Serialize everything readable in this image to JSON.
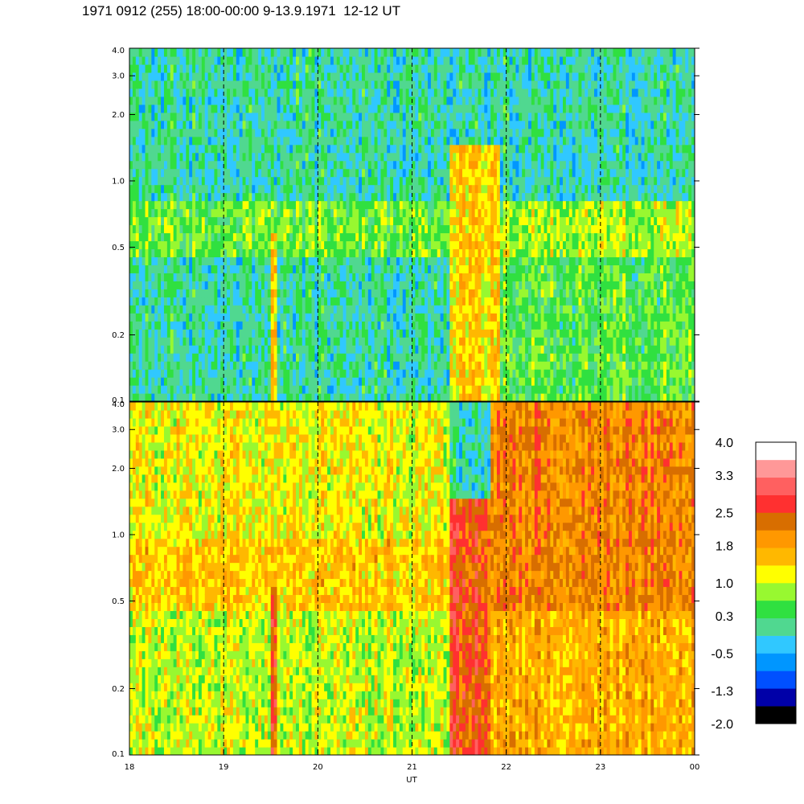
{
  "title": "1971 0912 (255) 18:00-00:00 9-13.9.1971  12-12 UT",
  "colors": {
    "scale": [
      "#000000",
      "#0000a8",
      "#0050ff",
      "#0096ff",
      "#30c8ff",
      "#50d890",
      "#30e040",
      "#98f830",
      "#ffff00",
      "#ffb800",
      "#ff9800",
      "#d86e00",
      "#ff3030",
      "#ff6060",
      "#ff9898",
      "#ffffff"
    ]
  },
  "chart_data": [
    {
      "type": "heatmap",
      "panel": "top",
      "xlabel": "",
      "ylabel": "",
      "x_range_hours": [
        18,
        24
      ],
      "y_range": [
        0.1,
        4.0
      ],
      "y_scale": "log",
      "y_ticks": [
        "0.1",
        "0.2",
        "0.5",
        "1.0",
        "2.0",
        "3.0",
        "4.0"
      ],
      "y_tick_values": [
        0.1,
        0.2,
        0.5,
        1.0,
        2.0,
        3.0,
        4.0
      ],
      "grid": "vertical dashed lines at each hour",
      "segments": [
        {
          "x": [
            18.0,
            21.4
          ],
          "y": [
            0.1,
            0.45
          ],
          "level": 0.0
        },
        {
          "x": [
            18.0,
            21.4
          ],
          "y": [
            0.45,
            0.8
          ],
          "level": 0.6
        },
        {
          "x": [
            18.0,
            24.0
          ],
          "y": [
            0.8,
            4.0
          ],
          "level": 0.0
        },
        {
          "x": [
            19.5,
            19.57
          ],
          "y": [
            0.1,
            0.6
          ],
          "level": 1.6
        },
        {
          "x": [
            21.4,
            21.95
          ],
          "y": [
            0.1,
            1.5
          ],
          "level": 1.4
        },
        {
          "x": [
            21.95,
            24.0
          ],
          "y": [
            0.1,
            0.45
          ],
          "level": 0.5
        },
        {
          "x": [
            21.95,
            24.0
          ],
          "y": [
            0.45,
            0.8
          ],
          "level": 0.9
        }
      ]
    },
    {
      "type": "heatmap",
      "panel": "bottom",
      "xlabel": "UT",
      "ylabel": "",
      "x_range_hours": [
        18,
        24
      ],
      "x_ticks": [
        "18",
        "19",
        "20",
        "21",
        "22",
        "23",
        "00"
      ],
      "x_tick_values": [
        18,
        19,
        20,
        21,
        22,
        23,
        24
      ],
      "y_range": [
        0.1,
        4.0
      ],
      "y_scale": "log",
      "y_ticks": [
        "0.1",
        "0.2",
        "0.5",
        "1.0",
        "2.0",
        "3.0",
        "4.0"
      ],
      "y_tick_values": [
        0.1,
        0.2,
        0.5,
        1.0,
        2.0,
        3.0,
        4.0
      ],
      "grid": "vertical dashed lines at each hour",
      "segments": [
        {
          "x": [
            18.0,
            21.4
          ],
          "y": [
            0.1,
            0.45
          ],
          "level": 1.0
        },
        {
          "x": [
            18.0,
            21.4
          ],
          "y": [
            0.45,
            1.0
          ],
          "level": 1.5
        },
        {
          "x": [
            18.0,
            21.4
          ],
          "y": [
            1.0,
            4.0
          ],
          "level": 1.2
        },
        {
          "x": [
            19.5,
            19.57
          ],
          "y": [
            0.1,
            0.6
          ],
          "level": 2.6
        },
        {
          "x": [
            21.4,
            21.85
          ],
          "y": [
            0.1,
            1.5
          ],
          "level": 2.5
        },
        {
          "x": [
            21.85,
            24.0
          ],
          "y": [
            0.1,
            0.45
          ],
          "level": 1.7
        },
        {
          "x": [
            21.85,
            24.0
          ],
          "y": [
            0.45,
            4.0
          ],
          "level": 2.1
        }
      ]
    },
    {
      "type": "colorbar",
      "labels": [
        "4.0",
        "3.3",
        "2.5",
        "1.8",
        "1.0",
        "0.3",
        "-0.5",
        "-1.3",
        "-2.0"
      ],
      "values": [
        4.0,
        3.3,
        2.5,
        1.8,
        1.0,
        0.3,
        -0.5,
        -1.3,
        -2.0
      ],
      "range": [
        -2.0,
        4.0
      ]
    }
  ]
}
